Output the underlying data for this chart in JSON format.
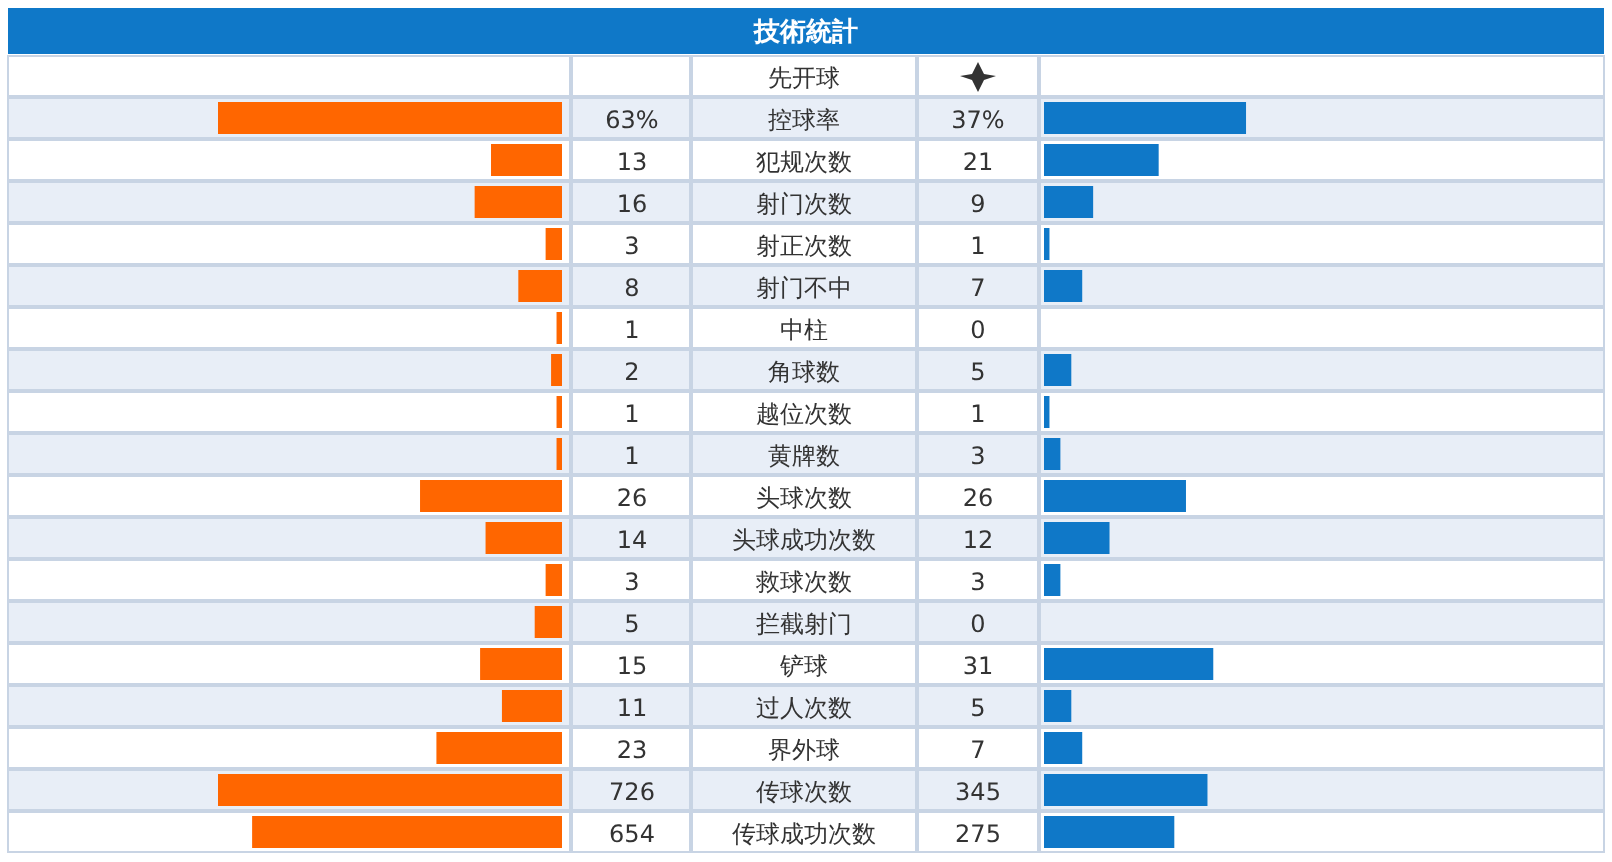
{
  "chart_data": [
    {
      "type": "bar",
      "orientation": "horizontal",
      "title": "技術統計",
      "categories": [
        "先开球",
        "控球率",
        "犯规次数",
        "射门次数",
        "射正次数",
        "射门不中",
        "中柱",
        "角球数",
        "越位次数",
        "黄牌数",
        "头球次数",
        "头球成功次数",
        "救球次数",
        "拦截射门",
        "铲球",
        "过人次数",
        "界外球"
      ],
      "series": [
        {
          "color": "#ff6600",
          "values": [
            null,
            63,
            13,
            16,
            3,
            8,
            1,
            2,
            1,
            1,
            26,
            14,
            3,
            5,
            15,
            11,
            23
          ],
          "value_labels": [
            null,
            "63%",
            "13",
            "16",
            "3",
            "8",
            "1",
            "2",
            "1",
            "1",
            "26",
            "14",
            "3",
            "5",
            "15",
            "11",
            "23"
          ]
        }
      ]
    },
    {
      "type": "bar",
      "orientation": "horizontal",
      "categories": [
        null,
        null,
        null,
        null,
        null,
        null,
        null,
        null,
        null,
        null,
        null,
        null,
        null,
        null,
        null,
        null,
        null
      ],
      "series": [
        {
          "color": "#0f78c8",
          "values": [
            null,
            37,
            21,
            9,
            1,
            7,
            0,
            5,
            1,
            3,
            26,
            12,
            3,
            0,
            31,
            5,
            7
          ],
          "value_labels": [
            null,
            "37%",
            "21",
            "9",
            "1",
            "7",
            "0",
            "5",
            "1",
            "3",
            "26",
            "12",
            "3",
            "0",
            "31",
            "5",
            "7"
          ]
        }
      ]
    },
    {
      "type": "bar",
      "orientation": "horizontal",
      "categories": [
        "传球次数",
        "传球成功次数"
      ],
      "series": [
        {
          "color": "#ff6600",
          "values": [
            726,
            654
          ],
          "value_labels": [
            "726",
            "654"
          ]
        }
      ]
    },
    {
      "type": "bar",
      "orientation": "horizontal",
      "categories": [
        null,
        null
      ],
      "series": [
        {
          "color": "#0f78c8",
          "values": [
            345,
            275
          ],
          "value_labels": [
            "345",
            "275"
          ]
        }
      ]
    }
  ]
}
